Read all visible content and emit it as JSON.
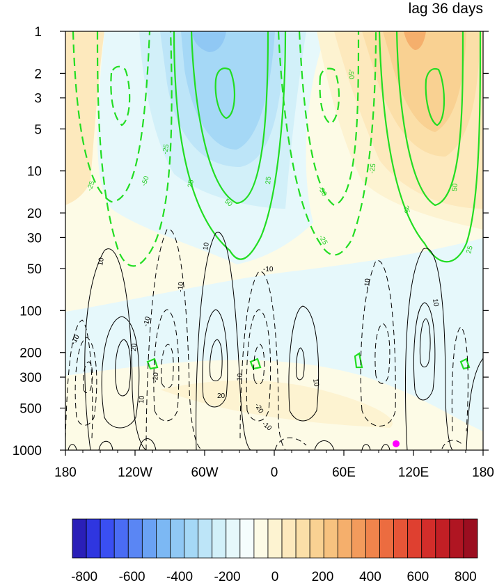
{
  "chart_data": {
    "type": "heatmap",
    "title": "lag 36 days",
    "xlabel": "",
    "ylabel": "",
    "x_ticks": [
      "180",
      "120W",
      "60W",
      "0",
      "60E",
      "120E",
      "180"
    ],
    "x_tick_values": [
      -180,
      -120,
      -60,
      0,
      60,
      120,
      180
    ],
    "y_ticks": [
      "1",
      "2",
      "3",
      "5",
      "10",
      "20",
      "30",
      "50",
      "100",
      "200",
      "300",
      "500",
      "1000"
    ],
    "y_tick_values": [
      1,
      2,
      3,
      5,
      10,
      20,
      30,
      50,
      100,
      200,
      300,
      500,
      1000
    ],
    "y_scale": "log",
    "y_inverted": true,
    "colorbar": {
      "labels": [
        "-800",
        "-600",
        "-400",
        "-200",
        "0",
        "200",
        "400",
        "600",
        "800"
      ],
      "label_values": [
        -800,
        -600,
        -400,
        -200,
        0,
        200,
        400,
        600,
        800
      ],
      "levels": [
        -850,
        -800,
        -750,
        -700,
        -650,
        -600,
        -550,
        -500,
        -450,
        -400,
        -350,
        -300,
        -250,
        -200,
        -150,
        -100,
        -50,
        0,
        50,
        100,
        150,
        200,
        250,
        300,
        350,
        400,
        450,
        500,
        550,
        600,
        650,
        700,
        750,
        800,
        850
      ],
      "colors": [
        "#2a1fb8",
        "#2f36e0",
        "#3a4ff2",
        "#4a6cf4",
        "#5a86f4",
        "#6aa2f4",
        "#7cb8f4",
        "#90c8f4",
        "#a5d8f6",
        "#bde5f8",
        "#d2f0f9",
        "#e6f8fb",
        "#f5fdfd",
        "#fdfbe6",
        "#fdf3d1",
        "#fde9bd",
        "#fbdfa8",
        "#f9d192",
        "#f7c27f",
        "#f5af6c",
        "#f39b5c",
        "#f0844c",
        "#ec6c40",
        "#e65537",
        "#df4030",
        "#d32d2a",
        "#c21f25",
        "#b01522",
        "#9b0e20"
      ]
    },
    "contour_labels_green": [
      "-50",
      "-25",
      "25",
      "50"
    ],
    "contour_labels_black": [
      "-10",
      "10",
      "20",
      "-20"
    ],
    "marker": {
      "lon": 105,
      "pressure": 900,
      "color": "#ff00ff"
    },
    "grid": false
  }
}
